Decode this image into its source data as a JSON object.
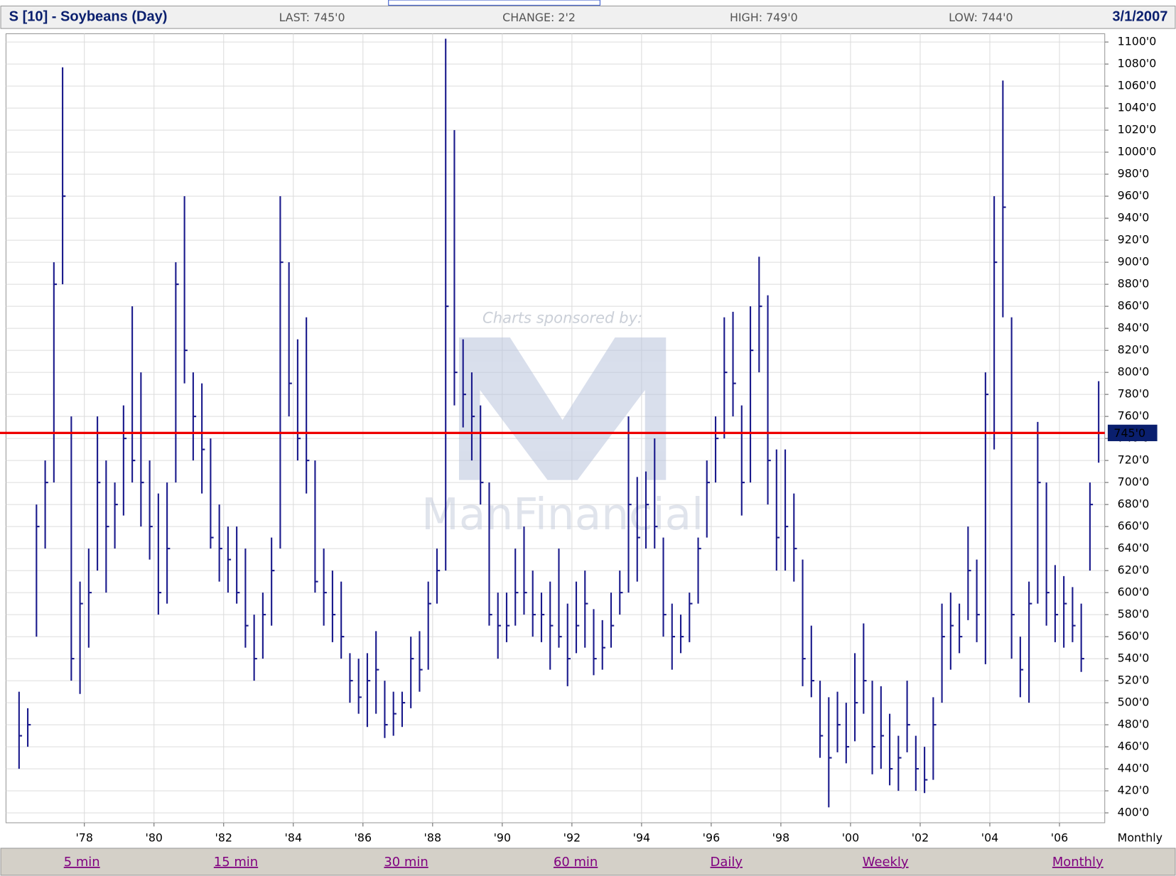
{
  "header": {
    "title": "S [10] - Soybeans (Day)",
    "last": "LAST: 745'0",
    "change": "CHANGE: 2'2",
    "high": "HIGH: 749'0",
    "low": "LOW: 744'0",
    "date": "3/1/2007"
  },
  "watermark": {
    "sponsor": "Charts sponsored by:",
    "brand": "ManFinancial"
  },
  "footer": {
    "links": [
      "5 min",
      "15 min",
      "30 min",
      "60 min",
      "Daily",
      "Weekly",
      "Monthly"
    ]
  },
  "chart_data": {
    "type": "ohlc",
    "period_label": "Monthly",
    "color": "#1a1a8c",
    "grid": true,
    "xlim": [
      1975.75,
      2007.3
    ],
    "ylim": [
      391,
      1107.5
    ],
    "xticks": [
      {
        "value": 1978,
        "label": "'78"
      },
      {
        "value": 1980,
        "label": "'80"
      },
      {
        "value": 1982,
        "label": "'82"
      },
      {
        "value": 1984,
        "label": "'84"
      },
      {
        "value": 1986,
        "label": "'86"
      },
      {
        "value": 1988,
        "label": "'88"
      },
      {
        "value": 1990,
        "label": "'90"
      },
      {
        "value": 1992,
        "label": "'92"
      },
      {
        "value": 1994,
        "label": "'94"
      },
      {
        "value": 1996,
        "label": "'96"
      },
      {
        "value": 1998,
        "label": "'98"
      },
      {
        "value": 2000,
        "label": "'00"
      },
      {
        "value": 2002,
        "label": "'02"
      },
      {
        "value": 2004,
        "label": "'04"
      },
      {
        "value": 2006,
        "label": "'06"
      }
    ],
    "yticks": [
      {
        "value": 400,
        "label": "400'0"
      },
      {
        "value": 420,
        "label": "420'0"
      },
      {
        "value": 440,
        "label": "440'0"
      },
      {
        "value": 460,
        "label": "460'0"
      },
      {
        "value": 480,
        "label": "480'0"
      },
      {
        "value": 500,
        "label": "500'0"
      },
      {
        "value": 520,
        "label": "520'0"
      },
      {
        "value": 540,
        "label": "540'0"
      },
      {
        "value": 560,
        "label": "560'0"
      },
      {
        "value": 580,
        "label": "580'0"
      },
      {
        "value": 600,
        "label": "600'0"
      },
      {
        "value": 620,
        "label": "620'0"
      },
      {
        "value": 640,
        "label": "640'0"
      },
      {
        "value": 660,
        "label": "660'0"
      },
      {
        "value": 680,
        "label": "680'0"
      },
      {
        "value": 700,
        "label": "700'0"
      },
      {
        "value": 720,
        "label": "720'0"
      },
      {
        "value": 740,
        "label": "740'0"
      },
      {
        "value": 760,
        "label": "760'0"
      },
      {
        "value": 780,
        "label": "780'0"
      },
      {
        "value": 800,
        "label": "800'0"
      },
      {
        "value": 820,
        "label": "820'0"
      },
      {
        "value": 840,
        "label": "840'0"
      },
      {
        "value": 860,
        "label": "860'0"
      },
      {
        "value": 880,
        "label": "880'0"
      },
      {
        "value": 900,
        "label": "900'0"
      },
      {
        "value": 920,
        "label": "920'0"
      },
      {
        "value": 940,
        "label": "940'0"
      },
      {
        "value": 960,
        "label": "960'0"
      },
      {
        "value": 980,
        "label": "980'0"
      },
      {
        "value": 1000,
        "label": "1000'0"
      },
      {
        "value": 1020,
        "label": "1020'0"
      },
      {
        "value": 1040,
        "label": "1040'0"
      },
      {
        "value": 1060,
        "label": "1060'0"
      },
      {
        "value": 1080,
        "label": "1080'0"
      },
      {
        "value": 1100,
        "label": "1100'0"
      }
    ],
    "last_line": {
      "value": 745,
      "label": "745'0",
      "color": "#ee0000"
    },
    "x": [
      1976.125,
      1976.375,
      1976.625,
      1976.875,
      1977.125,
      1977.375,
      1977.625,
      1977.875,
      1978.125,
      1978.375,
      1978.625,
      1978.875,
      1979.125,
      1979.375,
      1979.625,
      1979.875,
      1980.125,
      1980.375,
      1980.625,
      1980.875,
      1981.125,
      1981.375,
      1981.625,
      1981.875,
      1982.125,
      1982.375,
      1982.625,
      1982.875,
      1983.125,
      1983.375,
      1983.625,
      1983.875,
      1984.125,
      1984.375,
      1984.625,
      1984.875,
      1985.125,
      1985.375,
      1985.625,
      1985.875,
      1986.125,
      1986.375,
      1986.625,
      1986.875,
      1987.125,
      1987.375,
      1987.625,
      1987.875,
      1988.125,
      1988.375,
      1988.625,
      1988.875,
      1989.125,
      1989.375,
      1989.625,
      1989.875,
      1990.125,
      1990.375,
      1990.625,
      1990.875,
      1991.125,
      1991.375,
      1991.625,
      1991.875,
      1992.125,
      1992.375,
      1992.625,
      1992.875,
      1993.125,
      1993.375,
      1993.625,
      1993.875,
      1994.125,
      1994.375,
      1994.625,
      1994.875,
      1995.125,
      1995.375,
      1995.625,
      1995.875,
      1996.125,
      1996.375,
      1996.625,
      1996.875,
      1997.125,
      1997.375,
      1997.625,
      1997.875,
      1998.125,
      1998.375,
      1998.625,
      1998.875,
      1999.125,
      1999.375,
      1999.625,
      1999.875,
      2000.125,
      2000.375,
      2000.625,
      2000.875,
      2001.125,
      2001.375,
      2001.625,
      2001.875,
      2002.125,
      2002.375,
      2002.625,
      2002.875,
      2003.125,
      2003.375,
      2003.625,
      2003.875,
      2004.125,
      2004.375,
      2004.625,
      2004.875,
      2005.125,
      2005.375,
      2005.625,
      2005.875,
      2006.125,
      2006.375,
      2006.625,
      2006.875,
      2007.125
    ],
    "high": [
      510,
      495,
      680,
      720,
      900,
      1077,
      760,
      610,
      640,
      760,
      720,
      700,
      770,
      860,
      800,
      720,
      690,
      700,
      900,
      960,
      800,
      790,
      740,
      680,
      660,
      660,
      640,
      580,
      600,
      650,
      960,
      900,
      830,
      850,
      720,
      640,
      620,
      610,
      545,
      540,
      545,
      565,
      520,
      510,
      510,
      560,
      565,
      610,
      640,
      1103,
      1020,
      830,
      800,
      770,
      700,
      600,
      600,
      640,
      660,
      620,
      600,
      610,
      640,
      590,
      610,
      620,
      585,
      575,
      600,
      620,
      760,
      705,
      710,
      740,
      650,
      590,
      580,
      600,
      650,
      720,
      760,
      850,
      855,
      770,
      860,
      905,
      870,
      730,
      730,
      690,
      630,
      570,
      520,
      505,
      510,
      500,
      545,
      572,
      520,
      515,
      490,
      470,
      520,
      470,
      460,
      505,
      590,
      600,
      590,
      660,
      630,
      800,
      960,
      1065,
      850,
      560,
      610,
      755,
      700,
      625,
      615,
      605,
      590,
      700,
      792
    ],
    "low": [
      440,
      460,
      560,
      640,
      700,
      880,
      520,
      508,
      550,
      620,
      600,
      640,
      670,
      700,
      660,
      630,
      580,
      590,
      700,
      790,
      720,
      690,
      640,
      610,
      600,
      590,
      550,
      520,
      540,
      570,
      640,
      760,
      720,
      690,
      600,
      570,
      555,
      540,
      500,
      490,
      478,
      490,
      468,
      470,
      478,
      495,
      510,
      530,
      590,
      620,
      770,
      750,
      720,
      680,
      570,
      540,
      555,
      570,
      580,
      560,
      555,
      530,
      550,
      515,
      545,
      550,
      525,
      530,
      550,
      580,
      600,
      610,
      640,
      640,
      560,
      530,
      545,
      555,
      590,
      650,
      700,
      740,
      760,
      670,
      700,
      800,
      680,
      620,
      620,
      610,
      515,
      505,
      450,
      405,
      455,
      445,
      465,
      490,
      435,
      440,
      425,
      420,
      455,
      420,
      418,
      430,
      500,
      530,
      545,
      575,
      555,
      535,
      730,
      850,
      540,
      505,
      500,
      590,
      570,
      555,
      550,
      555,
      528,
      620,
      718
    ],
    "close": [
      470,
      480,
      660,
      700,
      880,
      960,
      540,
      590,
      600,
      700,
      660,
      680,
      740,
      720,
      700,
      660,
      600,
      640,
      880,
      820,
      760,
      730,
      650,
      640,
      630,
      600,
      570,
      540,
      580,
      620,
      900,
      790,
      740,
      720,
      610,
      600,
      580,
      560,
      520,
      505,
      520,
      530,
      480,
      490,
      500,
      540,
      530,
      590,
      620,
      860,
      800,
      780,
      760,
      700,
      580,
      570,
      570,
      600,
      600,
      580,
      580,
      570,
      560,
      540,
      570,
      590,
      540,
      550,
      570,
      600,
      680,
      650,
      680,
      660,
      580,
      560,
      560,
      590,
      640,
      700,
      740,
      800,
      790,
      700,
      820,
      860,
      720,
      650,
      660,
      640,
      540,
      520,
      470,
      450,
      480,
      460,
      500,
      520,
      460,
      470,
      440,
      450,
      480,
      440,
      430,
      480,
      560,
      570,
      560,
      620,
      580,
      780,
      900,
      950,
      580,
      530,
      590,
      700,
      600,
      580,
      590,
      570,
      540,
      680,
      745
    ]
  }
}
